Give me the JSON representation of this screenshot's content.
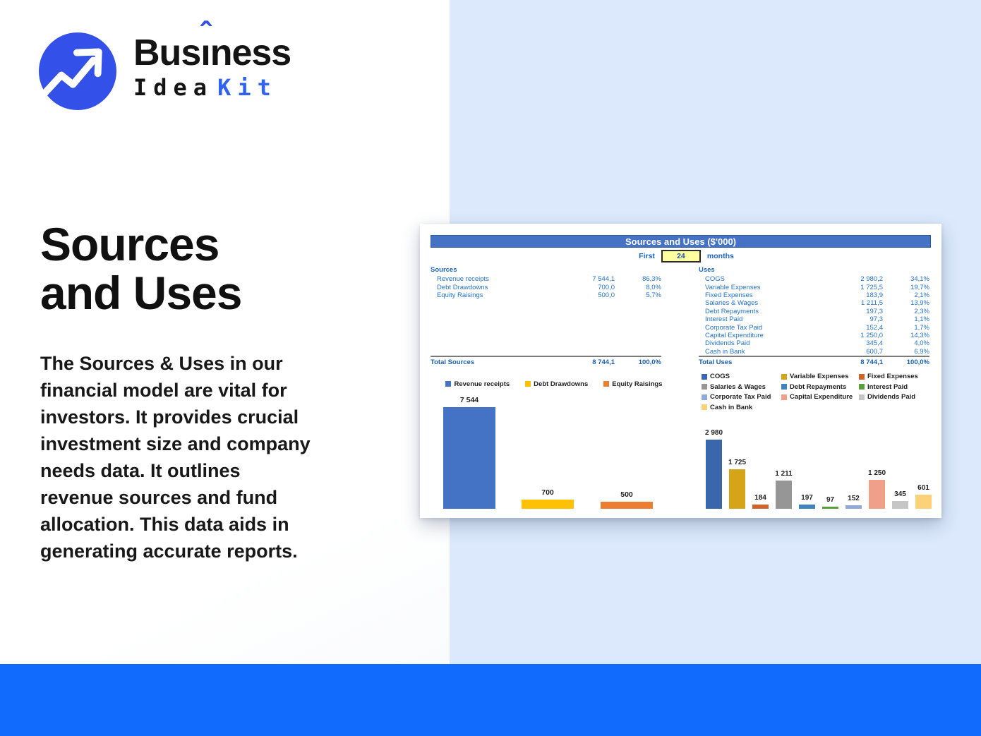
{
  "page": {
    "panel_color": "#dce9fc",
    "footer_color": "#116bfc"
  },
  "logo": {
    "brand_pre": "Bus",
    "brand_i": "ı",
    "brand_caret": "ˆ",
    "brand_post": "ness",
    "line2_word": "Idea",
    "line2_accent": "Kit",
    "brand_blue": "#3350e8",
    "accent_blue": "#2f62f5"
  },
  "hero": {
    "title": "Sources\nand Uses",
    "description": "The Sources & Uses in our\nfinancial model are vital for\ninvestors. It provides crucial\ninvestment size and company\nneeds data. It outlines\nrevenue sources and fund\nallocation. This data aids in\ngenerating accurate reports."
  },
  "workbook": {
    "title": "Sources and Uses ($'000)",
    "title_bar_color": "#4472c4",
    "period": {
      "prefix": "First",
      "value": "24",
      "suffix": "months"
    },
    "sources_table": {
      "header": "Sources",
      "rows": [
        {
          "label": "Revenue receipts",
          "value": "7 544,1",
          "pct": "86,3%"
        },
        {
          "label": "Debt Drawdowns",
          "value": "700,0",
          "pct": "8,0%"
        },
        {
          "label": "Equity Raisings",
          "value": "500,0",
          "pct": "5,7%"
        }
      ],
      "total": {
        "label": "Total Sources",
        "value": "8 744,1",
        "pct": "100,0%"
      }
    },
    "uses_table": {
      "header": "Uses",
      "rows": [
        {
          "label": "COGS",
          "value": "2 980,2",
          "pct": "34,1%"
        },
        {
          "label": "Variable Expenses",
          "value": "1 725,5",
          "pct": "19,7%"
        },
        {
          "label": "Fixed Expenses",
          "value": "183,9",
          "pct": "2,1%"
        },
        {
          "label": "Salaries & Wages",
          "value": "1 211,5",
          "pct": "13,9%"
        },
        {
          "label": "Debt Repayments",
          "value": "197,3",
          "pct": "2,3%"
        },
        {
          "label": "Interest Paid",
          "value": "97,3",
          "pct": "1,1%"
        },
        {
          "label": "Corporate Tax Paid",
          "value": "152,4",
          "pct": "1,7%"
        },
        {
          "label": "Capital Expenditure",
          "value": "1 250,0",
          "pct": "14,3%"
        },
        {
          "label": "Dividends Paid",
          "value": "345,4",
          "pct": "4,0%"
        },
        {
          "label": "Cash in Bank",
          "value": "600,7",
          "pct": "6,9%"
        }
      ],
      "total": {
        "label": "Total Uses",
        "value": "8 744,1",
        "pct": "100,0%"
      }
    }
  },
  "chart_data": [
    {
      "type": "bar",
      "title": "Sources",
      "legend_position": "top",
      "grid": false,
      "categories": [
        "Revenue receipts",
        "Debt Drawdowns",
        "Equity Raisings"
      ],
      "values": [
        7544,
        700,
        500
      ],
      "bar_labels": [
        "7 544",
        "700",
        "500"
      ],
      "colors": [
        "#4472c4",
        "#ffc103",
        "#ed7d31"
      ],
      "xlabel": "",
      "ylabel": "",
      "ylim": [
        0,
        7900
      ]
    },
    {
      "type": "bar",
      "title": "Uses",
      "legend_position": "top",
      "grid": false,
      "categories": [
        "COGS",
        "Variable Expenses",
        "Fixed Expenses",
        "Salaries & Wages",
        "Debt Repayments",
        "Interest Paid",
        "Corporate Tax Paid",
        "Capital Expenditure",
        "Dividends Paid",
        "Cash in Bank"
      ],
      "values": [
        2980,
        1725,
        184,
        1211,
        197,
        97,
        152,
        1250,
        345,
        601
      ],
      "bar_labels": [
        "2 980",
        "1 725",
        "184",
        "1 211",
        "197",
        "97",
        "152",
        "1 250",
        "345",
        "601"
      ],
      "colors": [
        "#3a66ad",
        "#d6a418",
        "#d2622a",
        "#969696",
        "#4083bf",
        "#5a9e3c",
        "#92a8d8",
        "#f0a088",
        "#c6c6c6",
        "#fbd278"
      ],
      "xlabel": "",
      "ylabel": "",
      "ylim": [
        0,
        3300
      ]
    }
  ]
}
